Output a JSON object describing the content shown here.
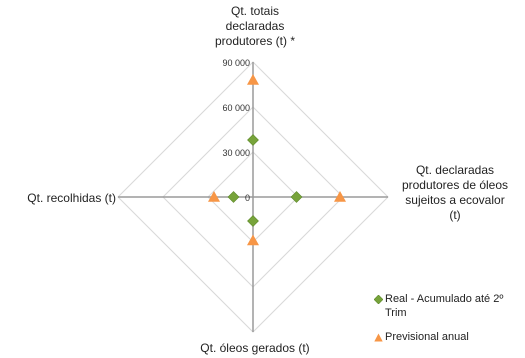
{
  "chart_data": {
    "type": "radar",
    "axes": [
      "Qt. totais declaradas produtores (t) *",
      "Qt. declaradas produtores de óleos sujeitos a ecovalor (t)",
      "Qt. óleos gerados (t)",
      "Qt. recolhidas (t)"
    ],
    "axis_label_lines": [
      [
        "Qt. totais",
        "declaradas",
        "produtores (t) *"
      ],
      [
        "Qt. declaradas",
        "produtores de óleos",
        "sujeitos a ecovalor",
        "(t)"
      ],
      [
        "Qt. óleos gerados (t)"
      ],
      [
        "Qt. recolhidas (t)"
      ]
    ],
    "range": [
      0,
      90000
    ],
    "ticks": [
      0,
      30000,
      60000,
      90000
    ],
    "tick_labels": [
      "0",
      "30 000",
      "60 000",
      "90 000"
    ],
    "grid": true,
    "legend_position": "bottom-right",
    "series": [
      {
        "name": "Real - Acumulado até 2º Trim",
        "legend_lines": [
          "Real - Acumulado até 2º",
          "Trim"
        ],
        "marker": "diamond",
        "color": "#77a33a",
        "values": [
          38000,
          29000,
          16000,
          13000
        ]
      },
      {
        "name": "Previsional anual",
        "legend_lines": [
          "Previsional anual"
        ],
        "marker": "triangle",
        "color": "#f79646",
        "values": [
          78000,
          58000,
          29000,
          26000
        ]
      }
    ]
  }
}
